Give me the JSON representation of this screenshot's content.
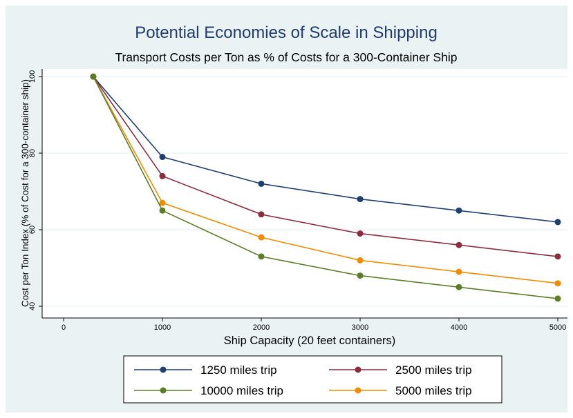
{
  "chart_data": {
    "type": "line",
    "title": "Potential Economies of Scale in Shipping",
    "subtitle": "Transport Costs per Ton as % of Costs for a 300-Container Ship",
    "xlabel": "Ship Capacity (20 feet containers)",
    "ylabel": "Cost per Ton Index (% of Cost for a 300-container ship)",
    "xlim": [
      0,
      5000
    ],
    "ylim": [
      40,
      100
    ],
    "x_ticks": [
      0,
      1000,
      2000,
      3000,
      4000,
      5000
    ],
    "y_ticks": [
      40,
      60,
      80,
      100
    ],
    "grid": true,
    "legend_position": "bottom",
    "x": [
      300,
      1000,
      2000,
      3000,
      4000,
      5000
    ],
    "series": [
      {
        "name": "1250 miles trip",
        "color": "#1f3f6e",
        "values": [
          100,
          79,
          72,
          68,
          65,
          62
        ]
      },
      {
        "name": "2500 miles trip",
        "color": "#8c2d3f",
        "values": [
          100,
          74,
          64,
          59,
          56,
          53
        ]
      },
      {
        "name": "10000 miles trip",
        "color": "#5a7d28",
        "values": [
          100,
          65,
          53,
          48,
          45,
          42
        ]
      },
      {
        "name": "5000 miles trip",
        "color": "#f08c00",
        "values": [
          100,
          67,
          58,
          52,
          49,
          46
        ]
      }
    ]
  }
}
